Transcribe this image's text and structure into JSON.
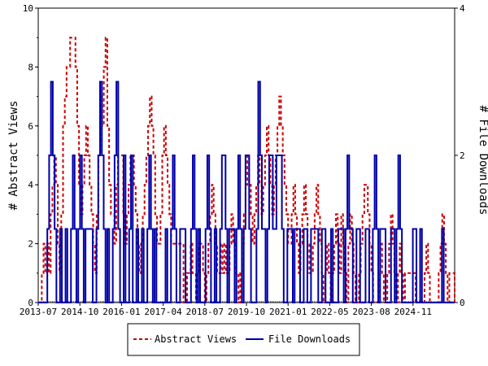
{
  "chart_data": {
    "type": "line",
    "title": "",
    "ylabel_left": "# Abstract Views",
    "ylabel_right": "# File Downloads",
    "x_tick_labels": [
      "2013-07",
      "2014-10",
      "2016-01",
      "2017-04",
      "2018-07",
      "2019-10",
      "2021-01",
      "2022-05",
      "2023-08",
      "2024-11"
    ],
    "ylim_left": [
      0,
      10
    ],
    "ylim_right": [
      0,
      4
    ],
    "y_ticks_left": [
      "0",
      "2",
      "4",
      "6",
      "8",
      "10"
    ],
    "y_ticks_right": [
      "0",
      "2",
      "4"
    ],
    "legend_position": "bottom-center",
    "colors": {
      "abstract": "#cc0000",
      "downloads": "#0000aa"
    },
    "series": [
      {
        "name": "Abstract Views",
        "axis": "left",
        "style": "dashed",
        "values": [
          0,
          0,
          1,
          2,
          1,
          2,
          1,
          3,
          4,
          5,
          4,
          2,
          1,
          3,
          6,
          7,
          8,
          8,
          9,
          9,
          9,
          8,
          6,
          4,
          3,
          4,
          5,
          6,
          5,
          4,
          3,
          2,
          1,
          3,
          5,
          7,
          6,
          8,
          9,
          6,
          4,
          3,
          3,
          2,
          4,
          5,
          5,
          5,
          3,
          2,
          3,
          4,
          5,
          5,
          4,
          3,
          2,
          1,
          2,
          3,
          4,
          5,
          6,
          7,
          6,
          5,
          3,
          2,
          2,
          3,
          5,
          6,
          5,
          4,
          3,
          2,
          2,
          2,
          2,
          2,
          2,
          2,
          0,
          0,
          1,
          1,
          2,
          1,
          1,
          0,
          1,
          2,
          2,
          1,
          0,
          1,
          2,
          3,
          4,
          3,
          2,
          1,
          1,
          2,
          1,
          2,
          1,
          1,
          2,
          3,
          2,
          1,
          1,
          0,
          1,
          2,
          3,
          4,
          5,
          4,
          3,
          2,
          3,
          4,
          5,
          4,
          3,
          4,
          5,
          6,
          5,
          4,
          3,
          4,
          5,
          6,
          7,
          6,
          5,
          4,
          3,
          2,
          2,
          3,
          4,
          3,
          2,
          1,
          2,
          3,
          4,
          3,
          2,
          1,
          1,
          2,
          3,
          4,
          3,
          2,
          1,
          0,
          1,
          2,
          1,
          0,
          1,
          2,
          3,
          2,
          1,
          3,
          2,
          1,
          0,
          2,
          3,
          2,
          1,
          0,
          0,
          1,
          2,
          3,
          4,
          4,
          3,
          2,
          1,
          0,
          0,
          0,
          1,
          2,
          1,
          0,
          0,
          1,
          2,
          3,
          2,
          1,
          0,
          1,
          2,
          1,
          0,
          1,
          1,
          1,
          1,
          1,
          1,
          0,
          0,
          0,
          0,
          0,
          1,
          2,
          1,
          0,
          0,
          0,
          0,
          0,
          1,
          2,
          3,
          2,
          1,
          0,
          1,
          1,
          1,
          0
        ]
      },
      {
        "name": "File Downloads",
        "axis": "right",
        "style": "solid",
        "values": [
          0,
          0,
          0,
          0,
          0,
          1,
          2,
          3,
          2,
          1,
          0,
          0,
          1,
          0,
          0,
          1,
          0,
          0,
          1,
          2,
          1,
          0,
          1,
          2,
          1,
          0,
          1,
          1,
          1,
          1,
          0,
          0,
          1,
          2,
          3,
          2,
          1,
          0,
          1,
          0,
          0,
          1,
          2,
          3,
          1,
          0,
          0,
          2,
          0,
          0,
          1,
          2,
          0,
          0,
          1,
          0,
          0,
          1,
          0,
          0,
          1,
          2,
          1,
          0,
          1,
          0,
          0,
          0,
          0,
          0,
          1,
          0,
          0,
          1,
          2,
          1,
          0,
          0,
          1,
          1,
          1,
          0,
          0,
          0,
          1,
          2,
          1,
          0,
          1,
          0,
          0,
          0,
          1,
          2,
          1,
          0,
          0,
          1,
          0,
          0,
          1,
          2,
          2,
          1,
          0,
          1,
          1,
          1,
          0,
          1,
          2,
          1,
          0,
          1,
          2,
          2,
          1,
          0,
          0,
          0,
          1,
          3,
          2,
          1,
          1,
          0,
          1,
          2,
          2,
          1,
          1,
          2,
          2,
          2,
          1,
          0,
          0,
          1,
          1,
          1,
          0,
          1,
          1,
          1,
          0,
          0,
          1,
          1,
          0,
          0,
          1,
          1,
          1,
          1,
          0,
          0,
          1,
          1,
          0,
          0,
          0,
          1,
          0,
          0,
          0,
          1,
          1,
          1,
          0,
          1,
          2,
          1,
          1,
          0,
          0,
          1,
          1,
          0,
          0,
          0,
          1,
          1,
          0,
          0,
          1,
          2,
          1,
          0,
          1,
          1,
          1,
          0,
          0,
          0,
          1,
          1,
          0,
          1,
          2,
          1,
          0,
          0,
          0,
          0,
          0,
          0,
          1,
          1,
          0,
          0,
          1,
          0,
          0,
          0,
          0,
          0,
          0,
          0,
          0,
          0,
          0,
          0,
          1,
          0,
          0,
          0,
          0,
          0,
          0,
          0
        ]
      }
    ]
  }
}
